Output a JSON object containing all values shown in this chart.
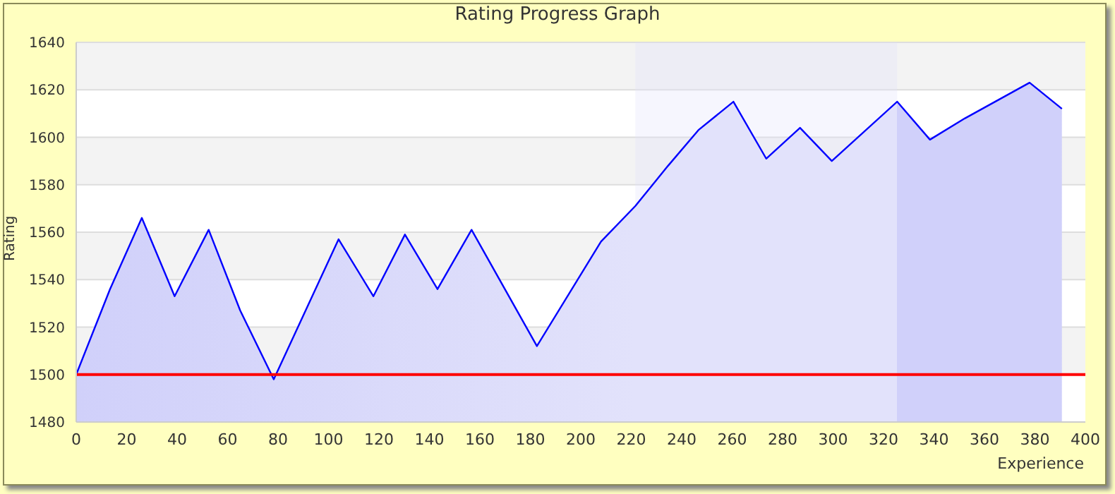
{
  "chart_data": {
    "type": "area",
    "title": "Rating Progress Graph",
    "xlabel": "Experience",
    "ylabel": "Rating",
    "x": [
      0,
      13.4,
      26,
      39,
      52.5,
      65,
      78.3,
      104,
      117.8,
      130.3,
      143.2,
      156.7,
      182.6,
      208,
      221.6,
      234.6,
      246.6,
      260.5,
      273.5,
      286.9,
      299.5,
      325.4,
      338.4,
      352.3,
      377.9,
      390.7
    ],
    "series": [
      {
        "color": "#0000ff",
        "values": [
          1500,
          1536,
          1566,
          1533,
          1561,
          1527,
          1498,
          1557,
          1533,
          1559,
          1536,
          1561,
          1512,
          1556,
          1571,
          1588,
          1603,
          1615,
          1591,
          1604,
          1590,
          1615,
          1599,
          1608,
          1623,
          1612
        ]
      }
    ],
    "xlim": [
      0,
      400
    ],
    "xticks": [
      0,
      20,
      40,
      60,
      80,
      100,
      120,
      140,
      160,
      180,
      200,
      220,
      240,
      260,
      280,
      300,
      320,
      340,
      360,
      380,
      400
    ],
    "ylim": [
      1480,
      1640
    ],
    "yticks": [
      1480,
      1500,
      1520,
      1540,
      1560,
      1580,
      1600,
      1620,
      1640
    ],
    "grid": "y",
    "ref_lines": [
      {
        "axis": "y",
        "value": 1500,
        "color": "#ff0000"
      }
    ],
    "bands": [
      {
        "axis": "x",
        "from": 221.6,
        "to": 325.4,
        "color": "#e2e2fb"
      }
    ]
  }
}
